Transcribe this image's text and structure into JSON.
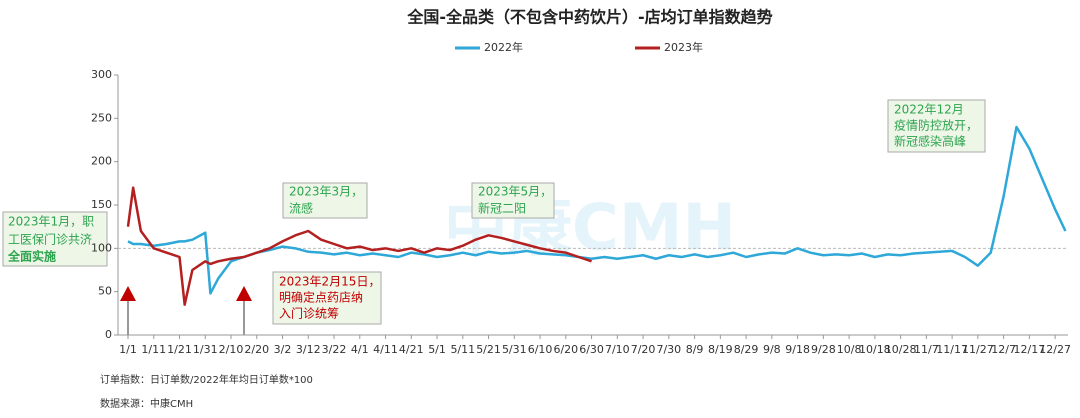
{
  "chart_data": {
    "type": "line",
    "title": "全国-全品类（不包含中药饮片）-店均订单指数趋势",
    "x": [
      1,
      3,
      6,
      11,
      16,
      21,
      23,
      26,
      31,
      33,
      36,
      41,
      46,
      51,
      56,
      61,
      66,
      71,
      76,
      81,
      86,
      91,
      96,
      101,
      106,
      111,
      116,
      121,
      126,
      131,
      136,
      141,
      146,
      151,
      156,
      161,
      166,
      171,
      176,
      181,
      186,
      191,
      196,
      201,
      206,
      211,
      216,
      221,
      226,
      231,
      236,
      241,
      246,
      251,
      256,
      261,
      266,
      271,
      276,
      281,
      286,
      291,
      296,
      301,
      306,
      311,
      316,
      321,
      326,
      331,
      336,
      341,
      346,
      351,
      356,
      361,
      365
    ],
    "xlim": [
      1,
      366
    ],
    "xticks": [
      {
        "value": 1,
        "label": "1/1"
      },
      {
        "value": 11,
        "label": "1/11"
      },
      {
        "value": 21,
        "label": "1/21"
      },
      {
        "value": 31,
        "label": "1/31"
      },
      {
        "value": 41,
        "label": "2/10"
      },
      {
        "value": 51,
        "label": "2/20"
      },
      {
        "value": 61,
        "label": "3/2"
      },
      {
        "value": 71,
        "label": "3/12"
      },
      {
        "value": 81,
        "label": "3/22"
      },
      {
        "value": 91,
        "label": "4/1"
      },
      {
        "value": 101,
        "label": "4/11"
      },
      {
        "value": 111,
        "label": "4/21"
      },
      {
        "value": 121,
        "label": "5/1"
      },
      {
        "value": 131,
        "label": "5/11"
      },
      {
        "value": 141,
        "label": "5/21"
      },
      {
        "value": 151,
        "label": "5/31"
      },
      {
        "value": 161,
        "label": "6/10"
      },
      {
        "value": 171,
        "label": "6/20"
      },
      {
        "value": 181,
        "label": "6/30"
      },
      {
        "value": 191,
        "label": "7/10"
      },
      {
        "value": 201,
        "label": "7/20"
      },
      {
        "value": 211,
        "label": "7/30"
      },
      {
        "value": 221,
        "label": "8/9"
      },
      {
        "value": 231,
        "label": "8/19"
      },
      {
        "value": 241,
        "label": "8/29"
      },
      {
        "value": 251,
        "label": "9/8"
      },
      {
        "value": 261,
        "label": "9/18"
      },
      {
        "value": 271,
        "label": "9/28"
      },
      {
        "value": 281,
        "label": "10/8"
      },
      {
        "value": 291,
        "label": "10/18"
      },
      {
        "value": 301,
        "label": "10/28"
      },
      {
        "value": 311,
        "label": "11/7"
      },
      {
        "value": 321,
        "label": "11/17"
      },
      {
        "value": 331,
        "label": "11/27"
      },
      {
        "value": 341,
        "label": "12/7"
      },
      {
        "value": 351,
        "label": "12/17"
      },
      {
        "value": 361,
        "label": "12/27"
      }
    ],
    "ylim": [
      0,
      300
    ],
    "yticks": [
      0,
      50,
      100,
      150,
      200,
      250,
      300
    ],
    "reference_line": 100,
    "series": [
      {
        "name": "2022年",
        "color": "#2ea8d8",
        "values": [
          108,
          105,
          105,
          103,
          105,
          108,
          108,
          110,
          118,
          48,
          65,
          85,
          90,
          95,
          98,
          102,
          100,
          96,
          95,
          93,
          95,
          92,
          94,
          92,
          90,
          95,
          93,
          90,
          92,
          95,
          92,
          96,
          94,
          95,
          97,
          94,
          93,
          92,
          90,
          88,
          90,
          88,
          90,
          92,
          88,
          92,
          90,
          93,
          90,
          92,
          95,
          90,
          93,
          95,
          94,
          100,
          95,
          92,
          93,
          92,
          94,
          90,
          93,
          92,
          94,
          95,
          96,
          97,
          90,
          80,
          95,
          160,
          240,
          215,
          180,
          145,
          120
        ]
      },
      {
        "name": "2023年",
        "color": "#b3201f",
        "values": [
          125,
          170,
          120,
          100,
          95,
          90,
          35,
          75,
          85,
          82,
          85,
          88,
          90,
          95,
          100,
          108,
          115,
          120,
          110,
          105,
          100,
          102,
          98,
          100,
          97,
          100,
          95,
          100,
          98,
          103,
          110,
          115,
          112,
          108,
          104,
          100,
          97,
          95,
          90,
          85,
          null,
          null,
          null,
          null,
          null,
          null,
          null,
          null,
          null,
          null,
          null,
          null,
          null,
          null,
          null,
          null,
          null,
          null,
          null,
          null,
          null,
          null,
          null,
          null,
          null,
          null,
          null,
          null,
          null,
          null,
          null,
          null,
          null,
          null,
          null,
          null,
          null
        ]
      }
    ],
    "legend": "top",
    "watermark": "中康CMH",
    "annotations": [
      [
        "2023年1月，职",
        "工医保门诊共济",
        "全面实施"
      ],
      [
        "2023年3月，",
        "流感"
      ],
      [
        "2023年5月，",
        "新冠二阳"
      ],
      [
        "2023年2月15日，",
        "明确定点药店纳",
        "入门诊统筹"
      ],
      [
        "2022年12月",
        "疫情防控放开，",
        "新冠感染高峰"
      ]
    ],
    "notes": [
      "订单指数：日订单数/2022年年均日订单数*100",
      "数据来源：中康CMH"
    ]
  }
}
